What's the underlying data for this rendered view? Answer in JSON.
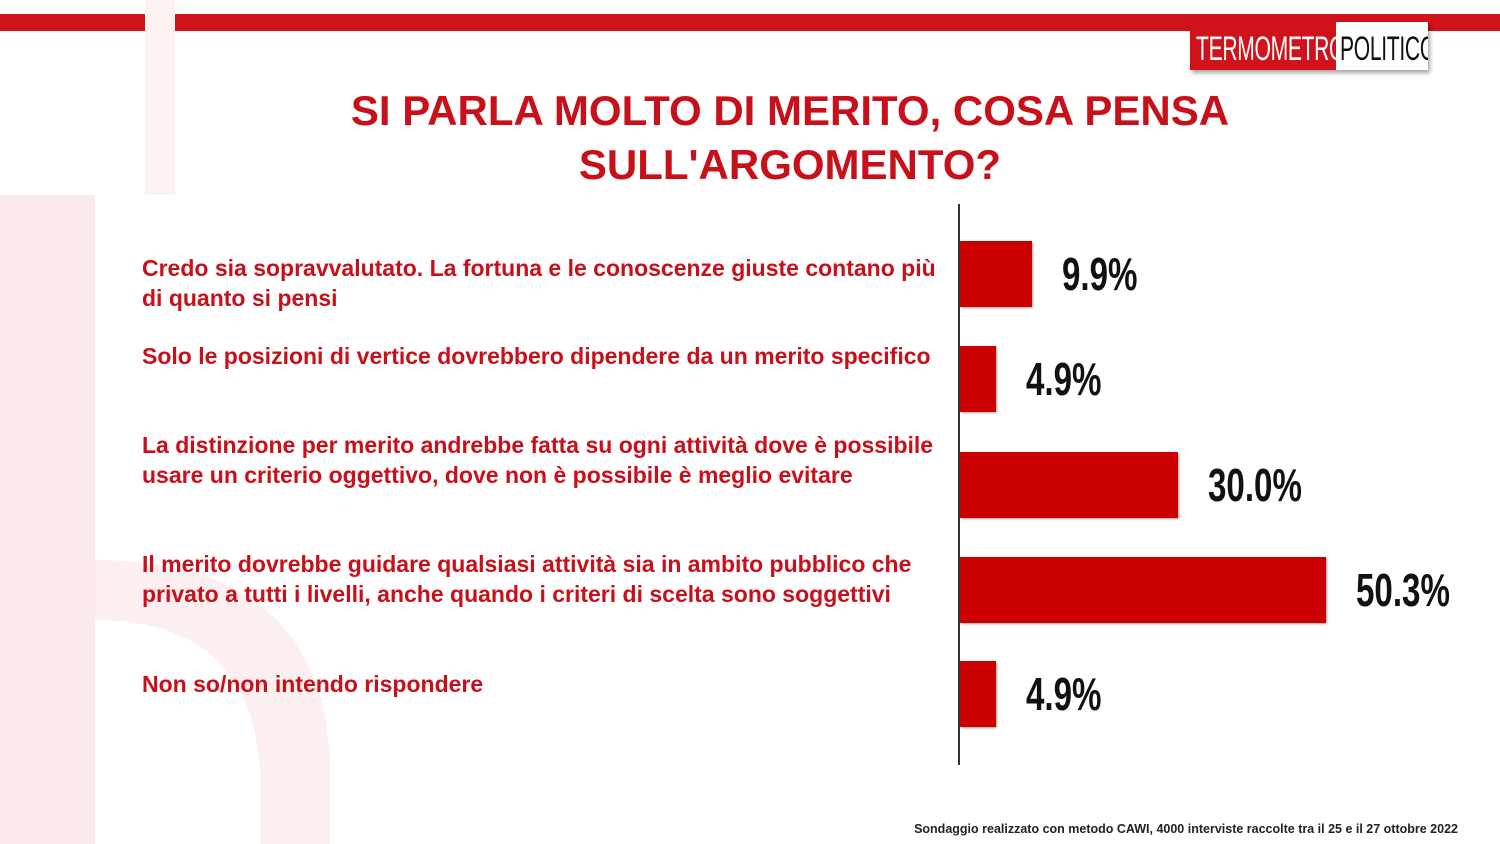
{
  "brand": {
    "logo_part1": "TERMOMETRO",
    "logo_part2": "POLITICO"
  },
  "colors": {
    "accent": "#d0121b",
    "bar": "#cc0000",
    "text_red": "#c8101a"
  },
  "chart_data": {
    "type": "bar",
    "orientation": "horizontal",
    "title": "SI PARLA MOLTO DI MERITO, COSA PENSA SULL'ARGOMENTO?",
    "categories": [
      "Credo sia sopravvalutato. La fortuna e le conoscenze giuste contano più di quanto si pensi",
      "Solo le posizioni di vertice dovrebbero dipendere da un merito specifico",
      "La distinzione per merito andrebbe fatta su ogni attività dove è possibile usare un criterio oggettivo, dove non è possibile è meglio evitare",
      "Il merito dovrebbe guidare qualsiasi attività  sia in ambito pubblico che privato a tutti i livelli, anche quando i criteri di scelta sono soggettivi",
      "Non so/non intendo rispondere"
    ],
    "values": [
      9.9,
      4.9,
      30.0,
      50.3,
      4.9
    ],
    "value_labels": [
      "9.9%",
      "4.9%",
      "30.0%",
      "50.3%",
      "4.9%"
    ],
    "xlim": [
      0,
      50.3
    ],
    "grid": false
  },
  "footnote": "Sondaggio realizzato con metodo CAWI, 4000 interviste raccolte tra il 25 e il 27 ottobre 2022"
}
